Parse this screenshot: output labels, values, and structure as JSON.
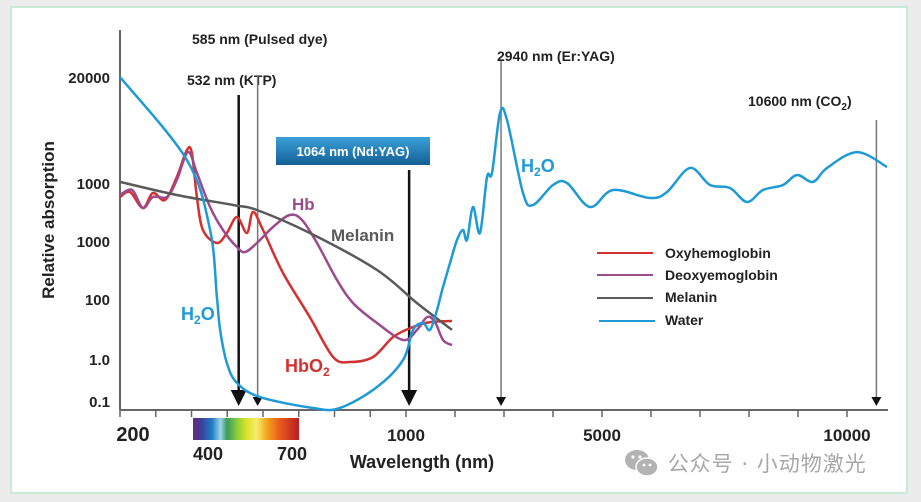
{
  "chart_data": {
    "type": "line",
    "xlabel": "Wavelength (nm)",
    "ylabel": "Relative absorption",
    "x_tick_labels": [
      {
        "label": "200",
        "value": 200
      },
      {
        "label": "1000",
        "value": 1000
      },
      {
        "label": "5000",
        "value": 5000
      },
      {
        "label": "10000",
        "value": 10000
      }
    ],
    "x_minor_ticks": [
      200,
      300,
      400,
      500,
      600,
      700,
      800,
      900,
      1000,
      2000,
      3000,
      4000,
      5000,
      6000,
      7000,
      8000,
      9000,
      10000
    ],
    "x_scale": "piecewise (200-1000 expanded, 1000-10000 compressed)",
    "y_scale": "log (non-uniform)",
    "y_tick_labels": [
      "0.1",
      "1.0",
      "100",
      "1000",
      "1000",
      "20000"
    ],
    "xlim": [
      200,
      11000
    ],
    "grid": false,
    "legend_placement": "center-right",
    "series": [
      {
        "name": "Oxyhemoglobin",
        "color": "#d2312f",
        "points": [
          [
            200,
            5730
          ],
          [
            228,
            7000
          ],
          [
            264,
            3700
          ],
          [
            292,
            6730
          ],
          [
            326,
            5100
          ],
          [
            359,
            10400
          ],
          [
            387,
            12400
          ],
          [
            401,
            12170
          ],
          [
            415,
            5730
          ],
          [
            432,
            1547
          ],
          [
            471,
            923
          ],
          [
            499,
            1374
          ],
          [
            527,
            2590
          ],
          [
            555,
            1374
          ],
          [
            572,
            3160
          ],
          [
            600,
            1547
          ],
          [
            656,
            281
          ],
          [
            731,
            25
          ],
          [
            796,
            1.17
          ],
          [
            843,
            0.85
          ],
          [
            908,
            1.17
          ],
          [
            964,
            5.4
          ],
          [
            1143,
            11.7
          ],
          [
            1490,
            17
          ],
          [
            1939,
            18.5
          ]
        ]
      },
      {
        "name": "Deoxyemoglobin",
        "color": "#9b4a8c",
        "points": [
          [
            200,
            6210
          ],
          [
            234,
            7570
          ],
          [
            264,
            3700
          ],
          [
            292,
            5730
          ],
          [
            331,
            5730
          ],
          [
            359,
            10200
          ],
          [
            390,
            12240
          ],
          [
            415,
            10680
          ],
          [
            452,
            3850
          ],
          [
            488,
            1547
          ],
          [
            527,
            787
          ],
          [
            550,
            646
          ],
          [
            583,
            923
          ],
          [
            628,
            1743
          ],
          [
            675,
            2810
          ],
          [
            709,
            2300
          ],
          [
            751,
            923
          ],
          [
            807,
            213
          ],
          [
            852,
            73
          ],
          [
            919,
            15.8
          ],
          [
            992,
            4.3
          ],
          [
            1224,
            9.3
          ],
          [
            1429,
            25
          ],
          [
            1592,
            17
          ],
          [
            1755,
            4.3
          ],
          [
            1939,
            2.9
          ]
        ]
      },
      {
        "name": "Melanin",
        "color": "#5a5a5a",
        "points": [
          [
            200,
            10070
          ],
          [
            359,
            6210
          ],
          [
            516,
            4170
          ],
          [
            583,
            3420
          ],
          [
            731,
            1374
          ],
          [
            919,
            316
          ],
          [
            1224,
            73
          ],
          [
            1939,
            9.3
          ]
        ]
      },
      {
        "name": "Water",
        "color": "#1e9ad6",
        "points": [
          [
            200,
            20000
          ],
          [
            387,
            11620
          ],
          [
            452,
            1547
          ],
          [
            471,
            108
          ],
          [
            480,
            9.3
          ],
          [
            499,
            0.8
          ],
          [
            527,
            0.27
          ],
          [
            592,
            0.124
          ],
          [
            740,
            0.068
          ],
          [
            815,
            0.068
          ],
          [
            919,
            0.215
          ],
          [
            992,
            0.95
          ],
          [
            1143,
            9.3
          ],
          [
            1347,
            15.8
          ],
          [
            1490,
            9.3
          ],
          [
            1633,
            43
          ],
          [
            1755,
            161
          ],
          [
            1898,
            417
          ],
          [
            2041,
            1040
          ],
          [
            2163,
            1547
          ],
          [
            2245,
            1040
          ],
          [
            2367,
            3850
          ],
          [
            2510,
            1374
          ],
          [
            2653,
            10400
          ],
          [
            2755,
            10680
          ],
          [
            2918,
            15800
          ],
          [
            3061,
            15100
          ],
          [
            3388,
            6720
          ],
          [
            3592,
            4170
          ],
          [
            4000,
            9230
          ],
          [
            4286,
            10000
          ],
          [
            4755,
            3850
          ],
          [
            5224,
            7570
          ],
          [
            5980,
            5510
          ],
          [
            6327,
            7000
          ],
          [
            6796,
            11030
          ],
          [
            7204,
            9230
          ],
          [
            7612,
            8210
          ],
          [
            7959,
            4700
          ],
          [
            8286,
            7570
          ],
          [
            8694,
            9230
          ],
          [
            8980,
            10540
          ],
          [
            9306,
            10070
          ],
          [
            9592,
            11030
          ],
          [
            10204,
            12240
          ],
          [
            10816,
            11100
          ]
        ]
      }
    ],
    "laser_lines": [
      {
        "label": "532 nm (KTP)",
        "wavelength": 532,
        "style": "bold-arrow"
      },
      {
        "label": "585 nm (Pulsed dye)",
        "wavelength": 585,
        "style": "thin-arrow"
      },
      {
        "label": "1064 nm (Nd:YAG)",
        "wavelength": 1064,
        "style": "bold-arrow",
        "highlight_color": "#1a78b4"
      },
      {
        "label": "2940 nm (Er:YAG)",
        "wavelength": 2940,
        "style": "thin-arrow"
      },
      {
        "label_main": "10600 nm (CO",
        "label_sub": "2",
        "label_end": ")",
        "wavelength": 10600,
        "style": "thin-arrow"
      }
    ],
    "annotations": {
      "h2o_left": {
        "main": "H",
        "sub": "2",
        "end": "O",
        "color": "#1e9ad6"
      },
      "h2o_right": {
        "main": "H",
        "sub": "2",
        "end": "O",
        "color": "#1e9ad6"
      },
      "hb": {
        "text": "Hb",
        "color": "#9b4a8c"
      },
      "melanin": {
        "text": "Melanin",
        "color": "#5a5a5a"
      },
      "hbo2": {
        "main": "HbO",
        "sub": "2",
        "color": "#d2312f"
      }
    },
    "spectrum_bar": {
      "min_label": "400",
      "max_label": "700"
    }
  },
  "watermark": {
    "text": "公众号 · 小动物激光",
    "icon": "wechat-icon"
  }
}
